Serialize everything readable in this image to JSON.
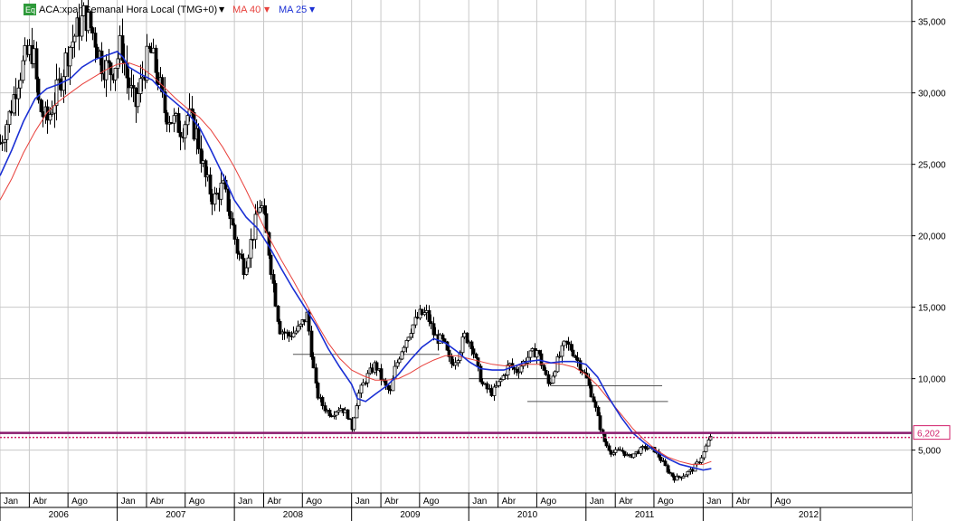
{
  "header": {
    "eq_badge": "Eq",
    "symbol_title": "ACA:xpar Semanal Hora Local (TMG+0)",
    "dropdown_arrow": "▼",
    "ma40_label": "MA 40",
    "ma25_label": "MA 25"
  },
  "colors": {
    "background": "#ffffff",
    "grid": "#c8c8c8",
    "candle": "#000000",
    "candle_up_fill": "#ffffff",
    "ma40": "#e8413c",
    "ma25": "#1a2fd4",
    "price_line": "#8a1a6c",
    "price_line_dotted": "#d0206a",
    "price_label": "#d0206a",
    "eq_badge": "#2e9a3a",
    "support_lines": "#555555"
  },
  "chart_data": {
    "type": "candlestick",
    "title": "ACA:xpar Semanal Hora Local (TMG+0)",
    "y_ticks": [
      "35,000",
      "30,000",
      "25,000",
      "20,000",
      "15,000",
      "10,000",
      "5,000"
    ],
    "y_tick_values": [
      35,
      30,
      25,
      20,
      15,
      10,
      5
    ],
    "ylim": [
      2.0,
      36.5
    ],
    "current_price_label": "6,202",
    "current_price": 6.202,
    "month_labels": [
      "Jan",
      "Abr",
      "Ago",
      "Jan",
      "Abr",
      "Ago",
      "Jan",
      "Abr",
      "Ago",
      "Jan",
      "Abr",
      "Ago",
      "Jan",
      "Abr",
      "Ago",
      "Jan",
      "Abr",
      "Ago",
      "Jan",
      "Abr",
      "Ago"
    ],
    "month_positions": [
      0.0,
      0.25,
      0.58,
      1.0,
      1.25,
      1.58,
      2.0,
      2.25,
      2.58,
      3.0,
      3.25,
      3.58,
      4.0,
      4.25,
      4.58,
      5.0,
      5.25,
      5.58,
      6.0,
      6.25,
      6.58
    ],
    "year_labels": [
      "2006",
      "2007",
      "2008",
      "2009",
      "2010",
      "2011",
      "2012"
    ],
    "year_positions": [
      0.5,
      1.5,
      2.5,
      3.5,
      4.5,
      5.5,
      6.9
    ],
    "xlim": [
      0.0,
      7.78
    ],
    "price_path": [
      [
        0.0,
        26.5
      ],
      [
        0.08,
        28.5
      ],
      [
        0.15,
        31.0
      ],
      [
        0.22,
        32.5
      ],
      [
        0.28,
        33.0
      ],
      [
        0.33,
        29.0
      ],
      [
        0.4,
        28.0
      ],
      [
        0.5,
        30.5
      ],
      [
        0.58,
        33.0
      ],
      [
        0.66,
        34.5
      ],
      [
        0.72,
        35.5
      ],
      [
        0.8,
        34.0
      ],
      [
        0.87,
        32.0
      ],
      [
        0.95,
        31.5
      ],
      [
        1.0,
        32.5
      ],
      [
        1.03,
        33.5
      ],
      [
        1.08,
        31.0
      ],
      [
        1.15,
        29.0
      ],
      [
        1.22,
        31.5
      ],
      [
        1.28,
        33.0
      ],
      [
        1.35,
        31.0
      ],
      [
        1.4,
        28.8
      ],
      [
        1.48,
        28.0
      ],
      [
        1.55,
        27.5
      ],
      [
        1.6,
        28.5
      ],
      [
        1.68,
        27.0
      ],
      [
        1.75,
        24.0
      ],
      [
        1.82,
        22.5
      ],
      [
        1.9,
        23.5
      ],
      [
        1.96,
        21.5
      ],
      [
        2.02,
        19.0
      ],
      [
        2.08,
        17.8
      ],
      [
        2.15,
        20.0
      ],
      [
        2.22,
        22.5
      ],
      [
        2.28,
        19.5
      ],
      [
        2.33,
        16.5
      ],
      [
        2.38,
        13.5
      ],
      [
        2.46,
        13.0
      ],
      [
        2.55,
        13.5
      ],
      [
        2.62,
        14.5
      ],
      [
        2.66,
        11.5
      ],
      [
        2.7,
        9.0
      ],
      [
        2.76,
        8.0
      ],
      [
        2.82,
        7.5
      ],
      [
        2.9,
        8.0
      ],
      [
        2.96,
        7.5
      ],
      [
        3.0,
        6.5
      ],
      [
        3.05,
        8.8
      ],
      [
        3.12,
        10.0
      ],
      [
        3.2,
        11.0
      ],
      [
        3.28,
        9.5
      ],
      [
        3.33,
        9.0
      ],
      [
        3.36,
        10.5
      ],
      [
        3.42,
        12.0
      ],
      [
        3.5,
        13.5
      ],
      [
        3.58,
        14.5
      ],
      [
        3.64,
        14.5
      ],
      [
        3.7,
        13.0
      ],
      [
        3.78,
        12.5
      ],
      [
        3.84,
        11.0
      ],
      [
        3.9,
        11.5
      ],
      [
        3.96,
        13.0
      ],
      [
        4.02,
        12.5
      ],
      [
        4.08,
        10.5
      ],
      [
        4.12,
        9.5
      ],
      [
        4.2,
        9.0
      ],
      [
        4.28,
        10.0
      ],
      [
        4.34,
        11.0
      ],
      [
        4.4,
        10.5
      ],
      [
        4.5,
        11.5
      ],
      [
        4.58,
        12.0
      ],
      [
        4.64,
        10.5
      ],
      [
        4.68,
        9.5
      ],
      [
        4.74,
        11.0
      ],
      [
        4.82,
        12.5
      ],
      [
        4.88,
        12.0
      ],
      [
        4.94,
        11.0
      ],
      [
        5.0,
        10.0
      ],
      [
        5.06,
        8.5
      ],
      [
        5.12,
        6.5
      ],
      [
        5.16,
        5.5
      ],
      [
        5.22,
        4.8
      ],
      [
        5.3,
        5.0
      ],
      [
        5.36,
        4.5
      ],
      [
        5.42,
        4.8
      ],
      [
        5.5,
        5.2
      ],
      [
        5.58,
        5.0
      ],
      [
        5.64,
        4.3
      ],
      [
        5.7,
        3.5
      ],
      [
        5.76,
        3.0
      ],
      [
        5.84,
        3.3
      ],
      [
        5.9,
        3.6
      ],
      [
        5.96,
        4.2
      ],
      [
        6.0,
        4.8
      ],
      [
        6.06,
        6.0
      ]
    ],
    "ma25_path": [
      [
        0.0,
        24.2
      ],
      [
        0.1,
        26.0
      ],
      [
        0.2,
        28.0
      ],
      [
        0.3,
        29.6
      ],
      [
        0.4,
        30.3
      ],
      [
        0.5,
        30.6
      ],
      [
        0.6,
        31.0
      ],
      [
        0.7,
        31.8
      ],
      [
        0.8,
        32.3
      ],
      [
        0.9,
        32.6
      ],
      [
        1.0,
        32.9
      ],
      [
        1.05,
        32.5
      ],
      [
        1.1,
        31.8
      ],
      [
        1.2,
        31.3
      ],
      [
        1.3,
        30.9
      ],
      [
        1.4,
        30.0
      ],
      [
        1.5,
        29.3
      ],
      [
        1.6,
        28.6
      ],
      [
        1.7,
        27.6
      ],
      [
        1.8,
        26.0
      ],
      [
        1.9,
        24.3
      ],
      [
        2.0,
        22.5
      ],
      [
        2.1,
        21.3
      ],
      [
        2.2,
        20.5
      ],
      [
        2.3,
        19.2
      ],
      [
        2.4,
        17.7
      ],
      [
        2.5,
        16.3
      ],
      [
        2.6,
        15.0
      ],
      [
        2.7,
        13.7
      ],
      [
        2.8,
        12.1
      ],
      [
        2.9,
        10.8
      ],
      [
        3.0,
        9.6
      ],
      [
        3.05,
        8.6
      ],
      [
        3.12,
        8.4
      ],
      [
        3.2,
        8.9
      ],
      [
        3.3,
        9.5
      ],
      [
        3.4,
        10.3
      ],
      [
        3.5,
        11.3
      ],
      [
        3.6,
        12.2
      ],
      [
        3.7,
        12.8
      ],
      [
        3.8,
        12.5
      ],
      [
        3.9,
        11.9
      ],
      [
        4.0,
        11.2
      ],
      [
        4.1,
        10.7
      ],
      [
        4.2,
        10.6
      ],
      [
        4.3,
        10.6
      ],
      [
        4.4,
        10.9
      ],
      [
        4.5,
        11.2
      ],
      [
        4.6,
        11.3
      ],
      [
        4.7,
        11.1
      ],
      [
        4.8,
        11.2
      ],
      [
        4.9,
        11.2
      ],
      [
        5.0,
        11.0
      ],
      [
        5.1,
        10.1
      ],
      [
        5.2,
        8.6
      ],
      [
        5.3,
        7.3
      ],
      [
        5.4,
        6.2
      ],
      [
        5.5,
        5.5
      ],
      [
        5.6,
        4.9
      ],
      [
        5.7,
        4.4
      ],
      [
        5.8,
        4.0
      ],
      [
        5.9,
        3.8
      ],
      [
        6.0,
        3.6
      ],
      [
        6.07,
        3.7
      ]
    ],
    "ma40_path": [
      [
        0.0,
        22.5
      ],
      [
        0.1,
        24.0
      ],
      [
        0.2,
        25.8
      ],
      [
        0.3,
        27.3
      ],
      [
        0.4,
        28.6
      ],
      [
        0.5,
        29.4
      ],
      [
        0.6,
        30.0
      ],
      [
        0.7,
        30.6
      ],
      [
        0.8,
        31.1
      ],
      [
        0.9,
        31.6
      ],
      [
        1.0,
        32.0
      ],
      [
        1.1,
        32.1
      ],
      [
        1.2,
        31.8
      ],
      [
        1.3,
        31.2
      ],
      [
        1.4,
        30.4
      ],
      [
        1.5,
        29.6
      ],
      [
        1.6,
        28.9
      ],
      [
        1.7,
        28.3
      ],
      [
        1.8,
        27.4
      ],
      [
        1.9,
        26.2
      ],
      [
        2.0,
        24.8
      ],
      [
        2.1,
        23.2
      ],
      [
        2.2,
        21.5
      ],
      [
        2.3,
        19.8
      ],
      [
        2.4,
        18.3
      ],
      [
        2.5,
        16.9
      ],
      [
        2.6,
        15.4
      ],
      [
        2.7,
        13.9
      ],
      [
        2.8,
        12.5
      ],
      [
        2.9,
        11.4
      ],
      [
        3.0,
        10.6
      ],
      [
        3.1,
        10.2
      ],
      [
        3.2,
        9.9
      ],
      [
        3.3,
        9.9
      ],
      [
        3.4,
        10.0
      ],
      [
        3.5,
        10.4
      ],
      [
        3.6,
        10.9
      ],
      [
        3.7,
        11.3
      ],
      [
        3.8,
        11.6
      ],
      [
        3.9,
        11.6
      ],
      [
        4.0,
        11.4
      ],
      [
        4.1,
        11.2
      ],
      [
        4.2,
        11.0
      ],
      [
        4.3,
        10.9
      ],
      [
        4.4,
        10.9
      ],
      [
        4.5,
        11.0
      ],
      [
        4.6,
        11.0
      ],
      [
        4.7,
        11.1
      ],
      [
        4.8,
        11.0
      ],
      [
        4.9,
        10.8
      ],
      [
        5.0,
        10.3
      ],
      [
        5.1,
        9.5
      ],
      [
        5.2,
        8.5
      ],
      [
        5.3,
        7.5
      ],
      [
        5.4,
        6.5
      ],
      [
        5.5,
        5.7
      ],
      [
        5.6,
        5.0
      ],
      [
        5.7,
        4.5
      ],
      [
        5.8,
        4.2
      ],
      [
        5.9,
        4.0
      ],
      [
        6.0,
        4.0
      ],
      [
        6.07,
        4.2
      ]
    ],
    "support_lines": [
      {
        "x1": 2.5,
        "x2": 3.75,
        "y": 11.7
      },
      {
        "x1": 4.0,
        "x2": 4.7,
        "y": 10.0
      },
      {
        "x1": 4.7,
        "x2": 5.65,
        "y": 9.5
      },
      {
        "x1": 4.5,
        "x2": 5.7,
        "y": 8.4
      }
    ]
  }
}
